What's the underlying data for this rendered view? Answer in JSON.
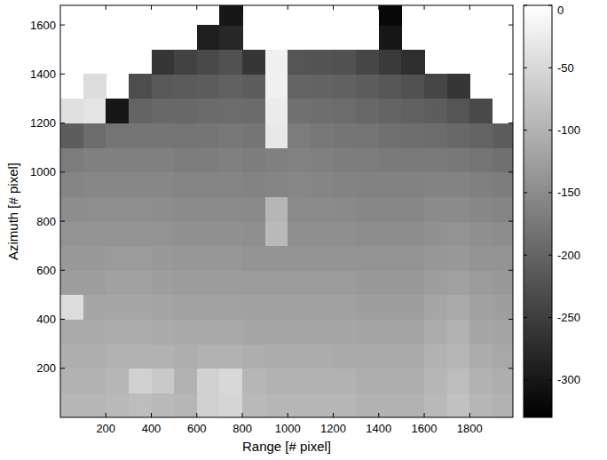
{
  "chart_data": {
    "type": "heatmap",
    "xlabel": "Range [# pixel]",
    "ylabel": "Azimuth [# pixel]",
    "xlim": [
      0,
      1990
    ],
    "ylim": [
      0,
      1680
    ],
    "xticks": [
      200,
      400,
      600,
      800,
      1000,
      1200,
      1400,
      1600,
      1800
    ],
    "yticks": [
      200,
      400,
      600,
      800,
      1000,
      1200,
      1400,
      1600
    ],
    "x_edges": [
      0,
      100,
      200,
      300,
      400,
      500,
      600,
      700,
      800,
      900,
      1000,
      1100,
      1200,
      1300,
      1400,
      1500,
      1600,
      1700,
      1800,
      1900,
      2000
    ],
    "y_edges": [
      0,
      100,
      200,
      300,
      400,
      500,
      600,
      700,
      800,
      900,
      1000,
      1100,
      1200,
      1300,
      1400,
      1500,
      1600,
      1700
    ],
    "cells": [
      [
        -95,
        -95,
        -90,
        -85,
        -90,
        -95,
        -60,
        -55,
        -90,
        -95,
        -95,
        -95,
        -95,
        -100,
        -100,
        -100,
        -90,
        -80,
        -95,
        -100
      ],
      [
        -100,
        -100,
        -95,
        -60,
        -70,
        -100,
        -60,
        -50,
        -95,
        -100,
        -100,
        -100,
        -100,
        -105,
        -105,
        -105,
        -95,
        -85,
        -100,
        -105
      ],
      [
        -105,
        -105,
        -100,
        -100,
        -100,
        -105,
        -100,
        -100,
        -105,
        -108,
        -108,
        -108,
        -110,
        -110,
        -110,
        -110,
        -100,
        -95,
        -108,
        -112
      ],
      [
        -110,
        -110,
        -108,
        -108,
        -110,
        -112,
        -112,
        -112,
        -115,
        -115,
        -115,
        -115,
        -115,
        -118,
        -118,
        -118,
        -108,
        -100,
        -115,
        -118
      ],
      [
        -45,
        -115,
        -115,
        -115,
        -118,
        -120,
        -120,
        -120,
        -122,
        -122,
        -122,
        -122,
        -122,
        -125,
        -125,
        -125,
        -115,
        -110,
        -122,
        -125
      ],
      [
        -125,
        -125,
        -122,
        -122,
        -125,
        -128,
        -128,
        -128,
        -130,
        -130,
        -130,
        -130,
        -130,
        -132,
        -132,
        -132,
        -125,
        -122,
        -130,
        -132
      ],
      [
        -132,
        -132,
        -130,
        -130,
        -132,
        -135,
        -135,
        -135,
        -138,
        -138,
        -138,
        -138,
        -138,
        -140,
        -140,
        -140,
        -135,
        -132,
        -138,
        -140
      ],
      [
        -140,
        -138,
        -138,
        -138,
        -140,
        -142,
        -142,
        -142,
        -145,
        -90,
        -145,
        -145,
        -145,
        -148,
        -148,
        -148,
        -142,
        -140,
        -145,
        -148
      ],
      [
        -148,
        -146,
        -146,
        -146,
        -148,
        -150,
        -150,
        -150,
        -152,
        -95,
        -150,
        -150,
        -152,
        -155,
        -155,
        -155,
        -150,
        -150,
        -155,
        -158
      ],
      [
        -158,
        -155,
        -155,
        -155,
        -155,
        -158,
        -158,
        -158,
        -160,
        -158,
        -155,
        -158,
        -160,
        -162,
        -162,
        -162,
        -160,
        -160,
        -165,
        -168
      ],
      [
        -170,
        -165,
        -165,
        -165,
        -165,
        -168,
        -168,
        -165,
        -168,
        -165,
        -162,
        -165,
        -168,
        -170,
        -172,
        -172,
        -172,
        -175,
        -180,
        -185
      ],
      [
        -210,
        -190,
        -180,
        -178,
        -178,
        -180,
        -178,
        -175,
        -178,
        -30,
        -170,
        -175,
        -178,
        -180,
        -185,
        -188,
        -190,
        -195,
        -200,
        -210
      ],
      [
        -40,
        -35,
        -300,
        -200,
        -195,
        -195,
        -192,
        -190,
        -192,
        -25,
        -185,
        -188,
        -190,
        -195,
        -200,
        -205,
        -210,
        -220,
        -235,
        null
      ],
      [
        null,
        -45,
        null,
        -230,
        -215,
        -212,
        -210,
        -205,
        -210,
        -20,
        -200,
        -202,
        -205,
        -210,
        -218,
        -225,
        -240,
        -260,
        null,
        null
      ],
      [
        null,
        null,
        null,
        null,
        -260,
        -245,
        -235,
        -225,
        -260,
        -20,
        -220,
        -222,
        -225,
        -240,
        -255,
        -270,
        null,
        null,
        null,
        null
      ],
      [
        null,
        null,
        null,
        null,
        null,
        null,
        -290,
        -280,
        null,
        null,
        null,
        null,
        null,
        null,
        -300,
        null,
        null,
        null,
        null,
        null
      ],
      [
        null,
        null,
        null,
        null,
        null,
        null,
        null,
        -300,
        null,
        null,
        null,
        null,
        null,
        null,
        -320,
        null,
        null,
        null,
        null,
        null
      ]
    ],
    "colorbar_range": [
      -330,
      0
    ],
    "colorbar_ticks": [
      0,
      -50,
      -100,
      -150,
      -200,
      -250,
      -300
    ]
  }
}
